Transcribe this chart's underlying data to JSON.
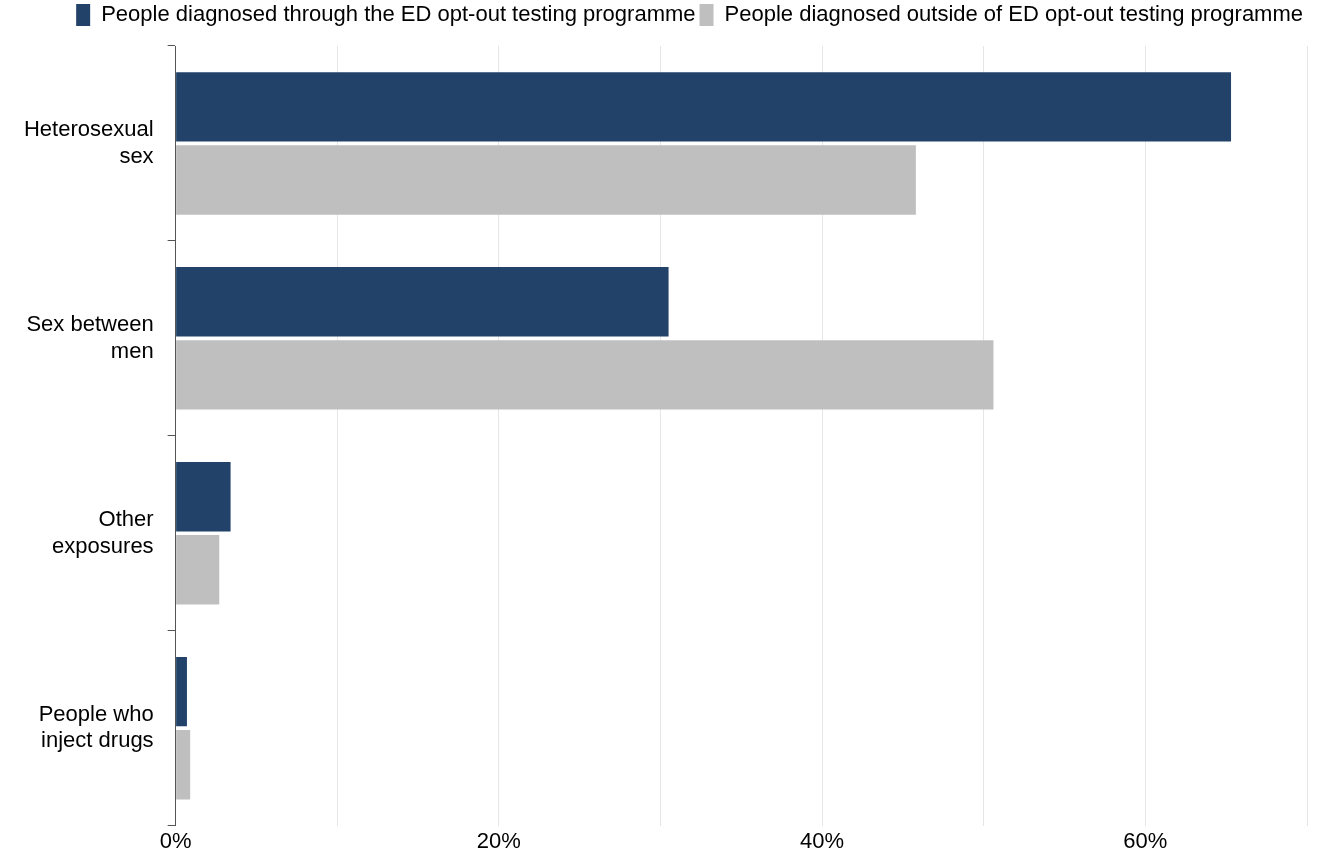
{
  "chart_data": {
    "type": "bar",
    "orientation": "horizontal",
    "categories": [
      "Heterosexual sex",
      "Sex between men",
      "Other exposures",
      "People who inject drugs"
    ],
    "series": [
      {
        "name": "People diagnosed through the ED opt-out testing programme",
        "color": "#22426a",
        "values": [
          65.3,
          30.5,
          3.4,
          0.7
        ]
      },
      {
        "name": "People diagnosed outside of ED opt-out testing programme",
        "color": "#bfbfbf",
        "values": [
          45.8,
          50.6,
          2.7,
          0.9
        ]
      }
    ],
    "xlim": [
      0,
      70
    ],
    "xticks": [
      {
        "value": 0,
        "label": "0%"
      },
      {
        "value": 10,
        "label": null
      },
      {
        "value": 20,
        "label": "20%"
      },
      {
        "value": 30,
        "label": null
      },
      {
        "value": 40,
        "label": "40%"
      },
      {
        "value": 50,
        "label": null
      },
      {
        "value": 60,
        "label": "60%"
      },
      {
        "value": 70,
        "label": null
      }
    ],
    "grid": "x",
    "legend": "top right"
  }
}
